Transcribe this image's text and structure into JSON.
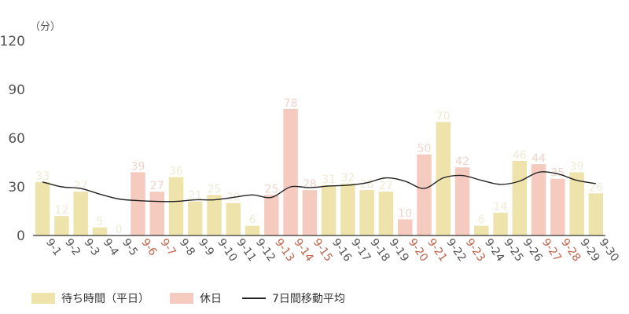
{
  "chart_data": {
    "type": "bar",
    "unit_label": "（分）",
    "categories": [
      "9-1",
      "9-2",
      "9-3",
      "9-4",
      "9-5",
      "9-6",
      "9-7",
      "9-8",
      "9-9",
      "9-10",
      "9-11",
      "9-12",
      "9-13",
      "9-14",
      "9-15",
      "9-16",
      "9-17",
      "9-18",
      "9-19",
      "9-20",
      "9-21",
      "9-22",
      "9-23",
      "9-24",
      "9-25",
      "9-26",
      "9-27",
      "9-28",
      "9-29",
      "9-30"
    ],
    "holidays": [
      "9-6",
      "9-7",
      "9-13",
      "9-14",
      "9-15",
      "9-20",
      "9-21",
      "9-23",
      "9-27",
      "9-28"
    ],
    "values": [
      33,
      12,
      27,
      5,
      0,
      39,
      27,
      36,
      21,
      25,
      20,
      6,
      25,
      78,
      28,
      31,
      32,
      28,
      27,
      10,
      50,
      70,
      42,
      6,
      14,
      46,
      44,
      35,
      39,
      26
    ],
    "series": [
      {
        "name": "待ち時間（平日）",
        "color": "#efe3ac"
      },
      {
        "name": "休日",
        "color": "#f5cbc0"
      },
      {
        "name": "7日間移動平均",
        "color": "#222222"
      }
    ],
    "moving_average": [
      33,
      30,
      29,
      25.5,
      22.5,
      21.5,
      21,
      21,
      22,
      22,
      23.5,
      25,
      23.5,
      30,
      29.5,
      30.5,
      31,
      32.5,
      35.5,
      33.5,
      29,
      35.5,
      37,
      34,
      31.5,
      33.5,
      39,
      38,
      34,
      32
    ],
    "yticks": [
      0,
      30,
      60,
      90,
      120
    ],
    "ylim": [
      0,
      120
    ],
    "colors": {
      "weekday_bar": "#efe3ac",
      "holiday_bar": "#f5cbc0",
      "weekday_value": "#f0ead4",
      "holiday_value": "#f0d3cb",
      "weekday_xlabel": "#555555",
      "holiday_xlabel": "#c0644c",
      "axis": "#333333",
      "line": "#222222"
    },
    "grid": false,
    "legend_position": "bottom-left"
  }
}
